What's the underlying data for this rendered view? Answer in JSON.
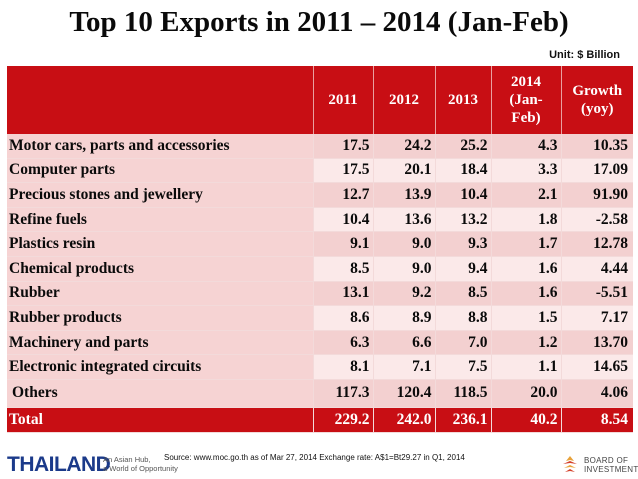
{
  "title": "Top 10 Exports in 2011 – 2014 (Jan-Feb)",
  "unit": "Unit: $ Billion",
  "headers": {
    "y2011": "2011",
    "y2012": "2012",
    "y2013": "2013",
    "y2014_1": "2014",
    "y2014_2": "(Jan-",
    "y2014_3": "Feb)",
    "growth_1": "Growth",
    "growth_2": "(yoy)"
  },
  "rows": [
    {
      "label": "Motor cars, parts and accessories",
      "y2011": "17.5",
      "y2012": "24.2",
      "y2013": "25.2",
      "y2014": "4.3",
      "growth": "10.35"
    },
    {
      "label": "Computer parts",
      "y2011": "17.5",
      "y2012": "20.1",
      "y2013": "18.4",
      "y2014": "3.3",
      "growth": "17.09"
    },
    {
      "label": "Precious stones and jewellery",
      "y2011": "12.7",
      "y2012": "13.9",
      "y2013": "10.4",
      "y2014": "2.1",
      "growth": "91.90"
    },
    {
      "label": "Refine fuels",
      "y2011": "10.4",
      "y2012": "13.6",
      "y2013": "13.2",
      "y2014": "1.8",
      "growth": "-2.58"
    },
    {
      "label": "Plastics resin",
      "y2011": "9.1",
      "y2012": "9.0",
      "y2013": "9.3",
      "y2014": "1.7",
      "growth": "12.78"
    },
    {
      "label": "Chemical products",
      "y2011": "8.5",
      "y2012": "9.0",
      "y2013": "9.4",
      "y2014": "1.6",
      "growth": "4.44"
    },
    {
      "label": "Rubber",
      "y2011": "13.1",
      "y2012": "9.2",
      "y2013": "8.5",
      "y2014": "1.6",
      "growth": "-5.51"
    },
    {
      "label": "Rubber products",
      "y2011": "8.6",
      "y2012": "8.9",
      "y2013": "8.8",
      "y2014": "1.5",
      "growth": "7.17"
    },
    {
      "label": "Machinery and parts",
      "y2011": "6.3",
      "y2012": "6.6",
      "y2013": "7.0",
      "y2014": "1.2",
      "growth": "13.70"
    },
    {
      "label": "Electronic integrated circuits",
      "y2011": "8.1",
      "y2012": "7.1",
      "y2013": "7.5",
      "y2014": "1.1",
      "growth": "14.65"
    }
  ],
  "others": {
    "label": "Others",
    "y2011": "117.3",
    "y2012": "120.4",
    "y2013": "118.5",
    "y2014": "20.0",
    "growth": "4.06"
  },
  "total": {
    "label": "Total",
    "y2011": "229.2",
    "y2012": "242.0",
    "y2013": "236.1",
    "y2014": "40.2",
    "growth": "8.54"
  },
  "footer": {
    "brand": "THAILAND",
    "tagline_1": "An Asian Hub,",
    "tagline_2": "a World of Opportunity",
    "source": "Source: www.moc.go.th as of Mar 27, 2014  Exchange rate: A$1=Bt29.27 in Q1, 2014",
    "boi_1": "BOARD OF",
    "boi_2": "INVESTMENT"
  },
  "colors": {
    "accent": "#c80e14",
    "row_light": "#fbe9e9",
    "row_dark": "#f3d0d0",
    "brand": "#1b3a8a"
  }
}
